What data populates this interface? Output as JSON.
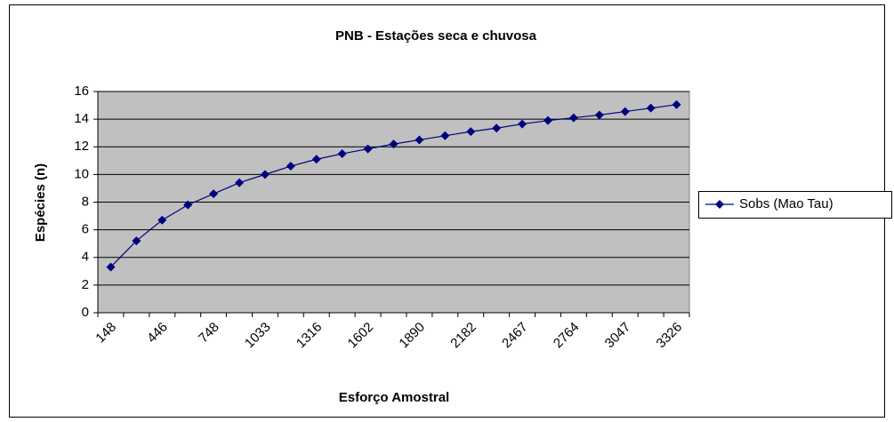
{
  "chart_data": {
    "type": "line",
    "title": "PNB - Estações seca e chuvosa",
    "x_label": "Esforço Amostral",
    "y_label": "Espécies (n)",
    "categories": [
      "148",
      null,
      "446",
      null,
      "748",
      null,
      "1033",
      null,
      "1316",
      null,
      "1602",
      null,
      "1890",
      null,
      "2182",
      null,
      "2467",
      null,
      "2764",
      null,
      "3047",
      null,
      "3326"
    ],
    "series": [
      {
        "name": "Sobs (Mao Tau)",
        "color": "#000080",
        "values": [
          3.3,
          5.2,
          6.7,
          7.8,
          8.6,
          9.4,
          10.0,
          10.6,
          11.1,
          11.5,
          11.85,
          12.2,
          12.5,
          12.8,
          13.1,
          13.35,
          13.65,
          13.9,
          14.1,
          14.3,
          14.55,
          14.8,
          15.05
        ]
      }
    ],
    "ylim": [
      0,
      16
    ],
    "yticks": [
      0,
      2,
      4,
      6,
      8,
      10,
      12,
      14,
      16
    ],
    "grid": true,
    "legend": "right",
    "plot_background": "#c0c0c0"
  }
}
